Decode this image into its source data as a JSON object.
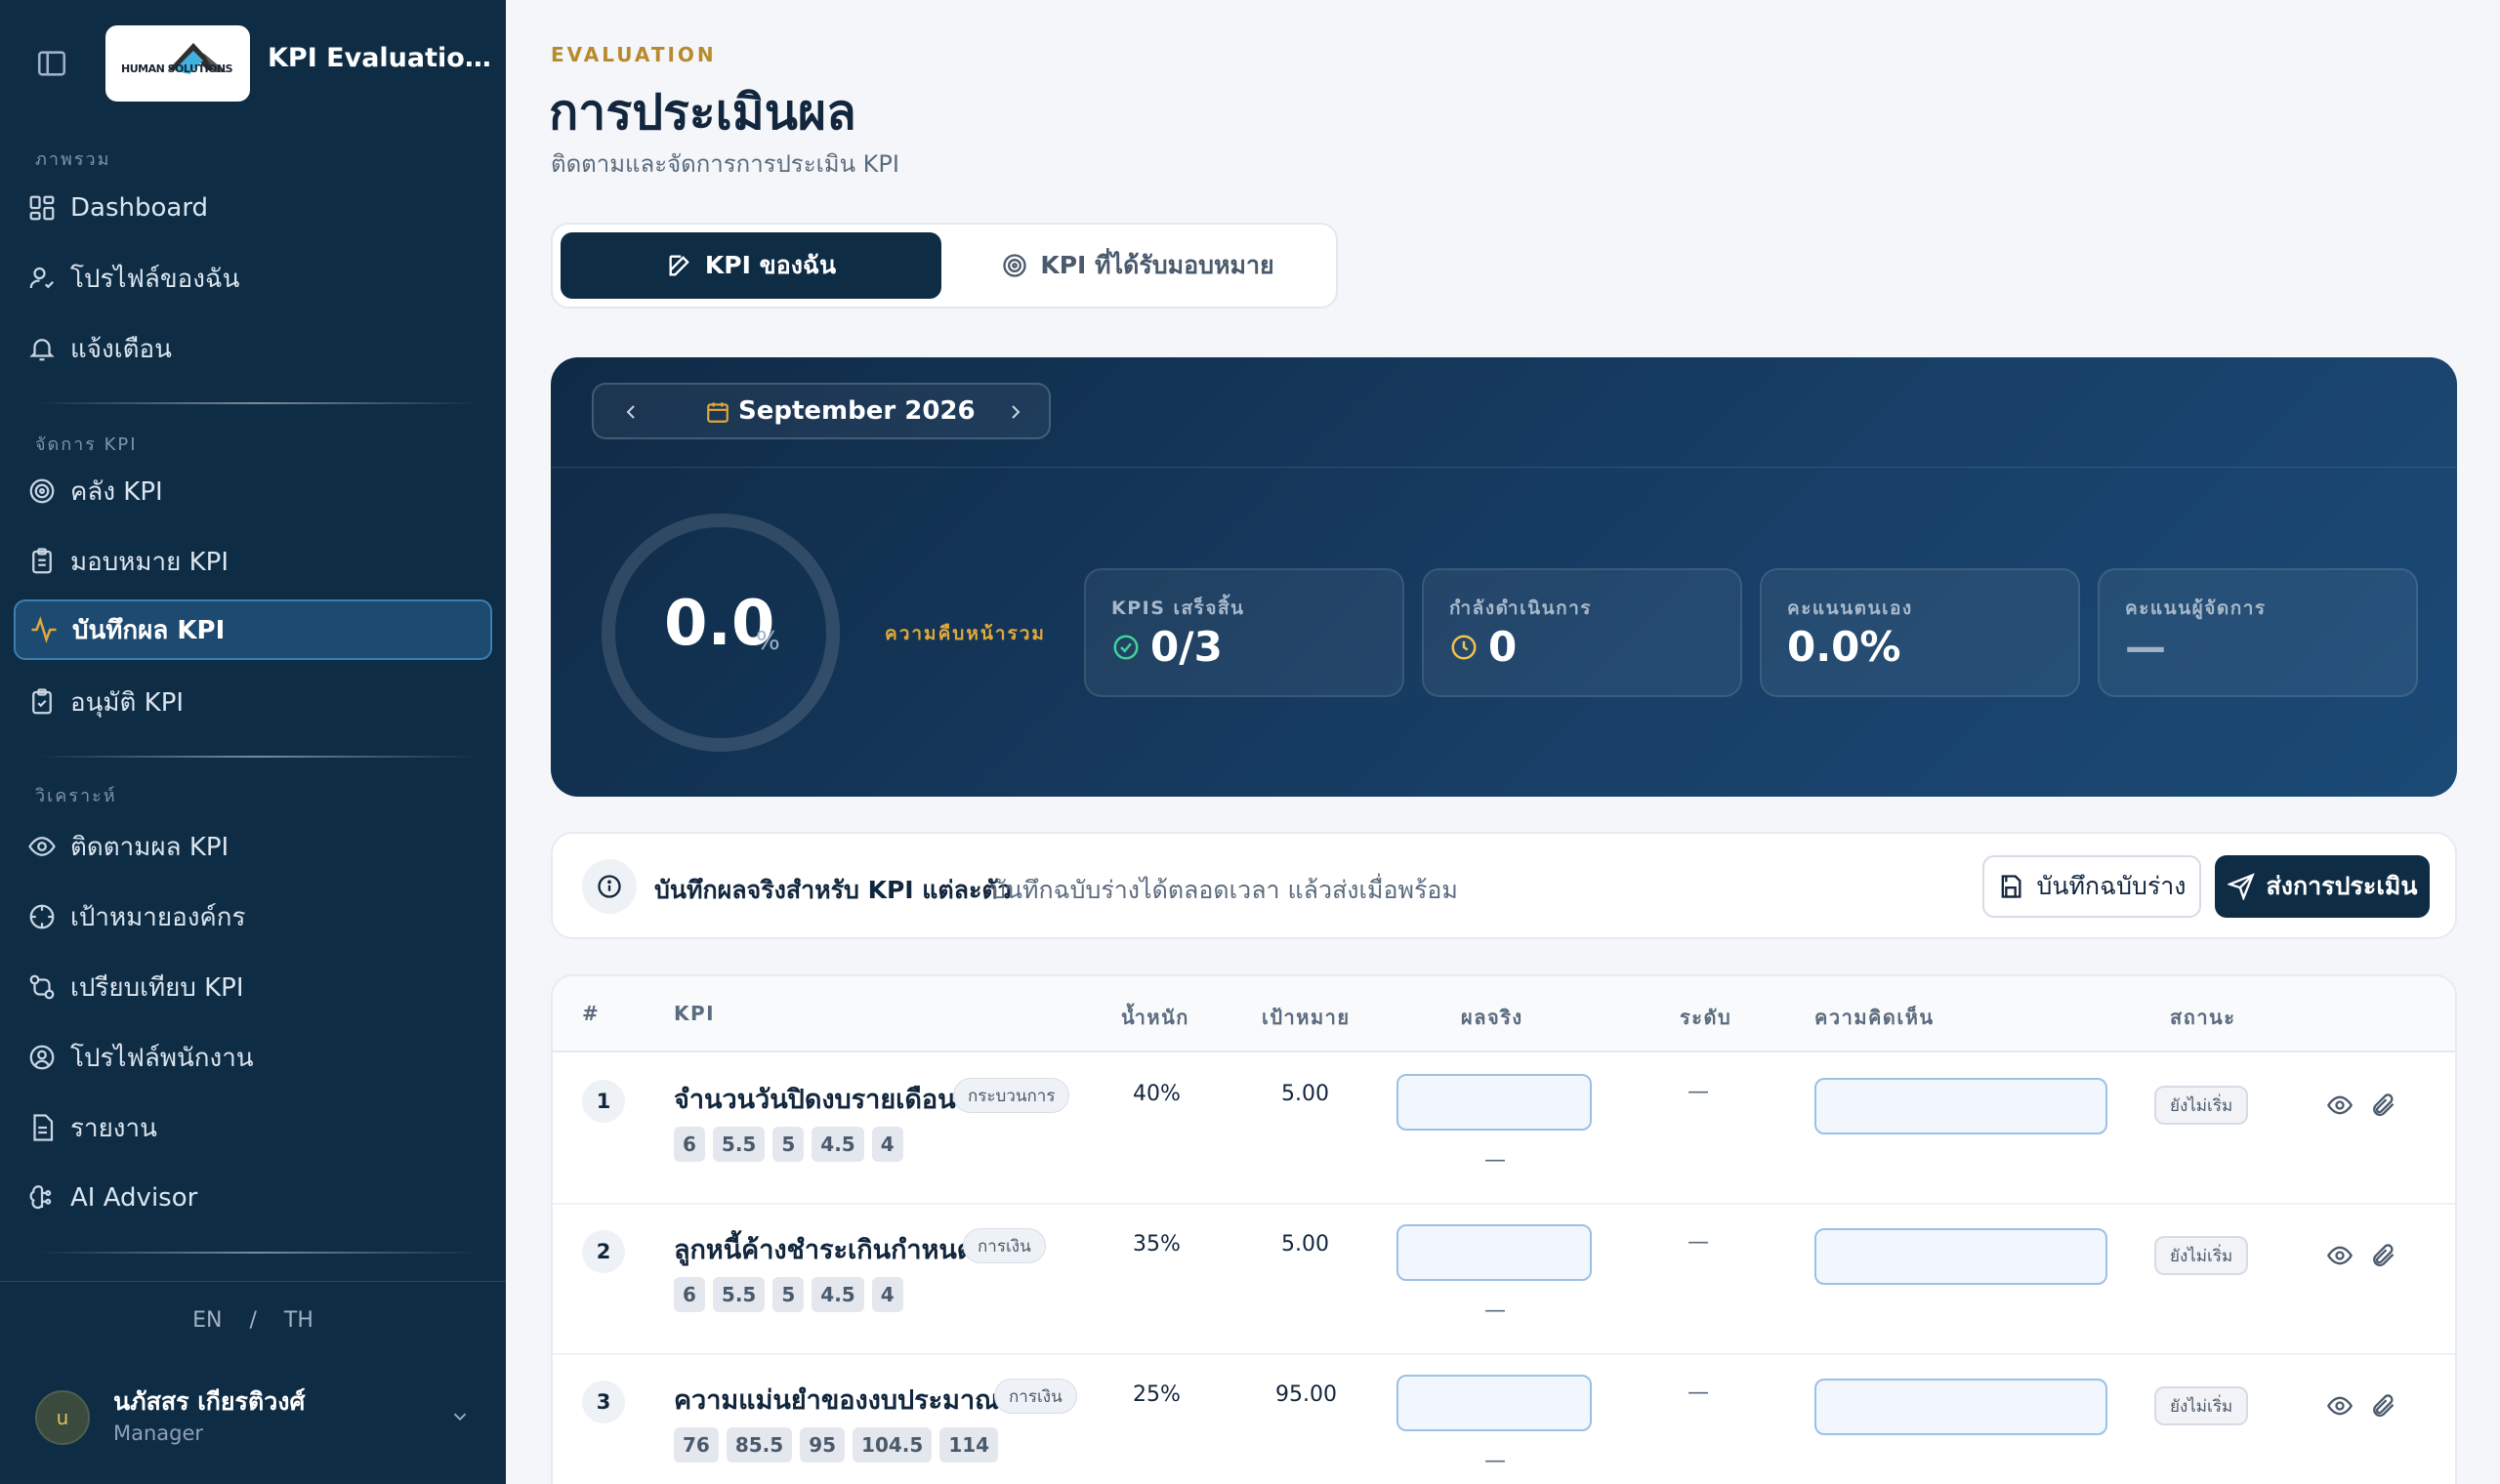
{
  "app": {
    "title": "KPI Evaluation ...",
    "logo_text": "HUMAN SOLUTIONS"
  },
  "sidebar": {
    "sections": [
      {
        "label": "ภาพรวม"
      },
      {
        "label": "จัดการ KPI"
      },
      {
        "label": "วิเคราะห์"
      }
    ],
    "items": [
      {
        "label": "Dashboard",
        "icon": "dashboard-icon"
      },
      {
        "label": "โปรไฟล์ของฉัน",
        "icon": "user-icon"
      },
      {
        "label": "แจ้งเตือน",
        "icon": "bell-icon"
      },
      {
        "label": "คลัง KPI",
        "icon": "target-icon"
      },
      {
        "label": "มอบหมาย KPI",
        "icon": "clipboard-icon"
      },
      {
        "label": "บันทึกผล KPI",
        "icon": "activity-icon",
        "active": true
      },
      {
        "label": "อนุมัติ KPI",
        "icon": "clipboard-check-icon"
      },
      {
        "label": "ติดตามผล KPI",
        "icon": "eye-icon"
      },
      {
        "label": "เป้าหมายองค์กร",
        "icon": "crosshair-icon"
      },
      {
        "label": "เปรียบเทียบ KPI",
        "icon": "compare-icon"
      },
      {
        "label": "โปรไฟล์พนักงาน",
        "icon": "user-circle-icon"
      },
      {
        "label": "รายงาน",
        "icon": "file-icon"
      },
      {
        "label": "AI Advisor",
        "icon": "brain-icon"
      }
    ],
    "lang": {
      "en": "EN",
      "sep": "/",
      "th": "TH"
    },
    "user": {
      "initial": "u",
      "name": "นภัสสร เกียรติวงศ์",
      "role": "Manager"
    }
  },
  "header": {
    "eyebrow": "EVALUATION",
    "title": "การประเมินผล",
    "subtitle": "ติดตามและจัดการการประเมิน KPI"
  },
  "tabs": [
    {
      "label": "KPI ของฉัน",
      "active": true
    },
    {
      "label": "KPI ที่ได้รับมอบหมาย",
      "active": false
    }
  ],
  "summary": {
    "month": "September 2026",
    "progress_value": "0.0",
    "progress_unit": "%",
    "progress_label": "ความคืบหน้ารวม",
    "stats": [
      {
        "label": "KPIS เสร็จสิ้น",
        "value": "0/3",
        "icon": "check-circle-icon"
      },
      {
        "label": "กำลังดำเนินการ",
        "value": "0",
        "icon": "clock-icon"
      },
      {
        "label": "คะแนนตนเอง",
        "value": "0.0%"
      },
      {
        "label": "คะแนนผู้จัดการ",
        "value": "—"
      }
    ]
  },
  "info": {
    "strong": "บันทึกผลจริงสำหรับ KPI แต่ละตัว",
    "text": "บันทึกฉบับร่างได้ตลอดเวลา แล้วส่งเมื่อพร้อม",
    "draft_label": "บันทึกฉบับร่าง",
    "submit_label": "ส่งการประเมิน"
  },
  "table": {
    "headers": {
      "num": "#",
      "kpi": "KPI",
      "weight": "น้ำหนัก",
      "target": "เป้าหมาย",
      "actual": "ผลจริง",
      "level": "ระดับ",
      "comment": "ความคิดเห็น",
      "status": "สถานะ"
    },
    "rows": [
      {
        "num": "1",
        "name": "จำนวนวันปิดงบรายเดือน",
        "tag": "กระบวนการ",
        "chips": [
          "6",
          "5.5",
          "5",
          "4.5",
          "4"
        ],
        "weight": "40%",
        "target": "5.00",
        "actual_sub": "—",
        "level": "—",
        "status": "ยังไม่เริ่ม"
      },
      {
        "num": "2",
        "name": "ลูกหนี้ค้างชำระเกินกำหนด",
        "tag": "การเงิน",
        "chips": [
          "6",
          "5.5",
          "5",
          "4.5",
          "4"
        ],
        "weight": "35%",
        "target": "5.00",
        "actual_sub": "—",
        "level": "—",
        "status": "ยังไม่เริ่ม"
      },
      {
        "num": "3",
        "name": "ความแม่นยำของงบประมาณ",
        "tag": "การเงิน",
        "chips": [
          "76",
          "85.5",
          "95",
          "104.5",
          "114"
        ],
        "weight": "25%",
        "target": "95.00",
        "actual_sub": "—",
        "level": "—",
        "status": "ยังไม่เริ่ม"
      }
    ]
  },
  "colors": {
    "sidebar": "#0f2c45",
    "accent_gold": "#b88a2d",
    "primary": "#0f2c45",
    "hero_end": "#1b4a76"
  }
}
